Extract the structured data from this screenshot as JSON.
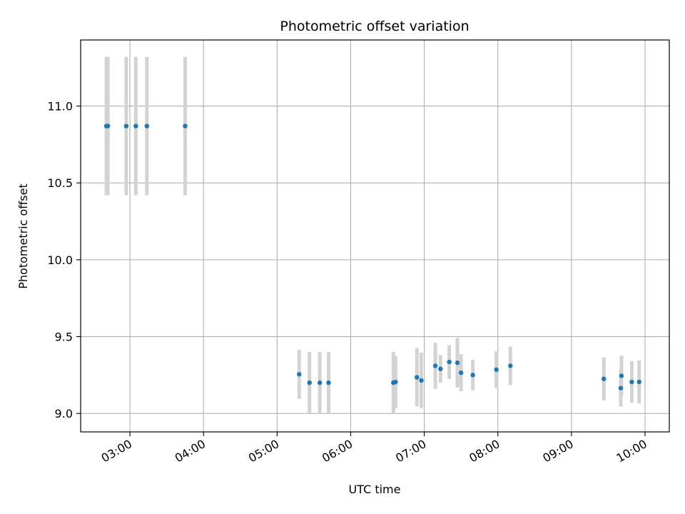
{
  "chart_data": {
    "type": "scatter",
    "title": "Photometric offset variation",
    "xlabel": "UTC time",
    "ylabel": "Photometric offset",
    "x_unit": "hours UTC",
    "xlim": [
      2.33,
      10.33
    ],
    "ylim": [
      8.88,
      11.43
    ],
    "x_ticks": [
      3,
      4,
      5,
      6,
      7,
      8,
      9,
      10
    ],
    "x_tick_labels": [
      "03:00",
      "04:00",
      "05:00",
      "06:00",
      "07:00",
      "08:00",
      "09:00",
      "10:00"
    ],
    "y_ticks": [
      9.0,
      9.5,
      10.0,
      10.5,
      11.0
    ],
    "y_tick_labels": [
      "9.0",
      "9.5",
      "10.0",
      "10.5",
      "11.0"
    ],
    "grid": true,
    "point_color": "#1f77b4",
    "errorbar_color": "#d3d3d3",
    "points": [
      {
        "x": 2.68,
        "y": 10.87,
        "err": 0.45
      },
      {
        "x": 2.7,
        "y": 10.87,
        "err": 0.45
      },
      {
        "x": 2.95,
        "y": 10.87,
        "err": 0.45
      },
      {
        "x": 3.08,
        "y": 10.87,
        "err": 0.45
      },
      {
        "x": 3.23,
        "y": 10.87,
        "err": 0.45
      },
      {
        "x": 3.75,
        "y": 10.87,
        "err": 0.45
      },
      {
        "x": 5.3,
        "y": 9.255,
        "err": 0.16
      },
      {
        "x": 5.44,
        "y": 9.2,
        "err": 0.2
      },
      {
        "x": 5.58,
        "y": 9.2,
        "err": 0.2
      },
      {
        "x": 5.7,
        "y": 9.2,
        "err": 0.2
      },
      {
        "x": 6.58,
        "y": 9.2,
        "err": 0.2
      },
      {
        "x": 6.61,
        "y": 9.205,
        "err": 0.17
      },
      {
        "x": 6.9,
        "y": 9.235,
        "err": 0.19
      },
      {
        "x": 6.96,
        "y": 9.215,
        "err": 0.18
      },
      {
        "x": 7.15,
        "y": 9.31,
        "err": 0.15
      },
      {
        "x": 7.22,
        "y": 9.29,
        "err": 0.09
      },
      {
        "x": 7.34,
        "y": 9.335,
        "err": 0.11
      },
      {
        "x": 7.45,
        "y": 9.33,
        "err": 0.16
      },
      {
        "x": 7.5,
        "y": 9.265,
        "err": 0.12
      },
      {
        "x": 7.66,
        "y": 9.25,
        "err": 0.1
      },
      {
        "x": 7.98,
        "y": 9.285,
        "err": 0.12
      },
      {
        "x": 8.17,
        "y": 9.31,
        "err": 0.125
      },
      {
        "x": 9.44,
        "y": 9.225,
        "err": 0.14
      },
      {
        "x": 9.67,
        "y": 9.165,
        "err": 0.12
      },
      {
        "x": 9.68,
        "y": 9.245,
        "err": 0.13
      },
      {
        "x": 9.82,
        "y": 9.205,
        "err": 0.135
      },
      {
        "x": 9.92,
        "y": 9.205,
        "err": 0.14
      }
    ]
  }
}
